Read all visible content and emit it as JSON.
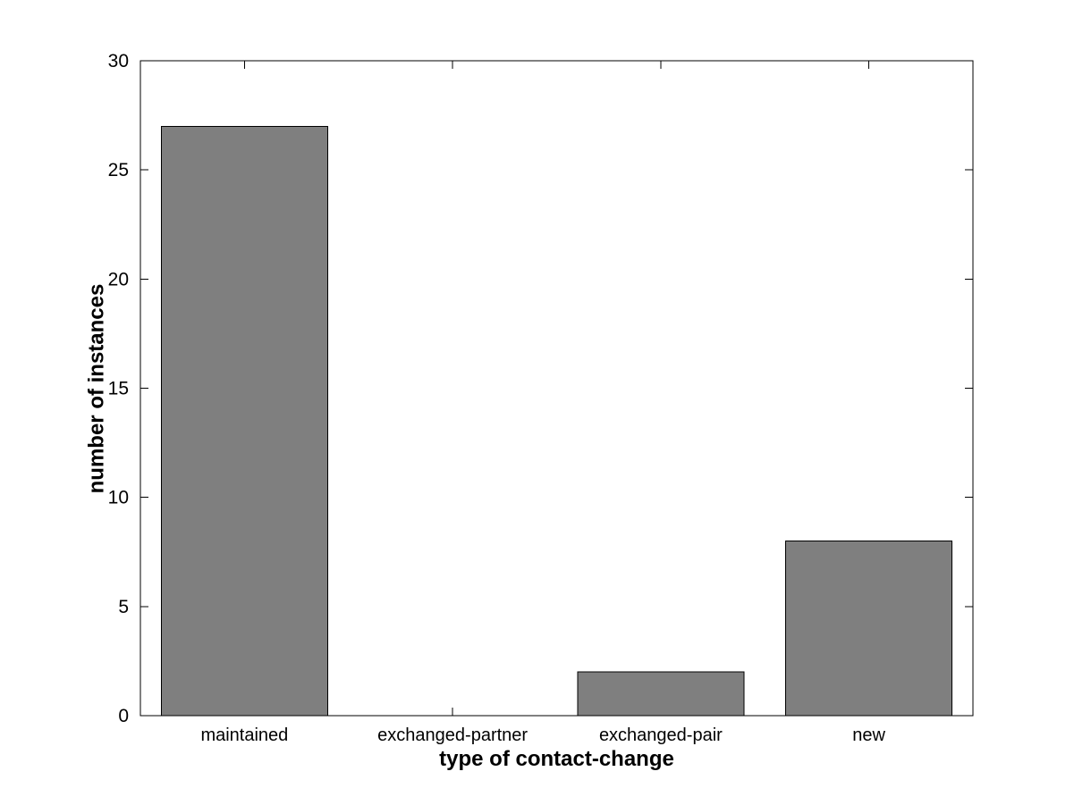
{
  "figure": {
    "background_color": "#FFFFFF"
  },
  "chart_data": {
    "type": "bar",
    "categories": [
      "maintained",
      "exchanged-partner",
      "exchanged-pair",
      "new"
    ],
    "values": [
      27,
      0,
      2,
      8
    ],
    "xlabel": "type of contact-change",
    "ylabel": "number of instances",
    "yticks": [
      0,
      5,
      10,
      15,
      20,
      25,
      30
    ],
    "ylim": [
      0,
      30
    ],
    "bar_width_fraction": 0.8,
    "bar_color": "#7F7F7F",
    "bar_edge_color": "#000000",
    "axis_color": "#000000",
    "tick_label_color": "#000000",
    "grid": false,
    "legend": null,
    "box": true,
    "tick_direction": "in"
  }
}
